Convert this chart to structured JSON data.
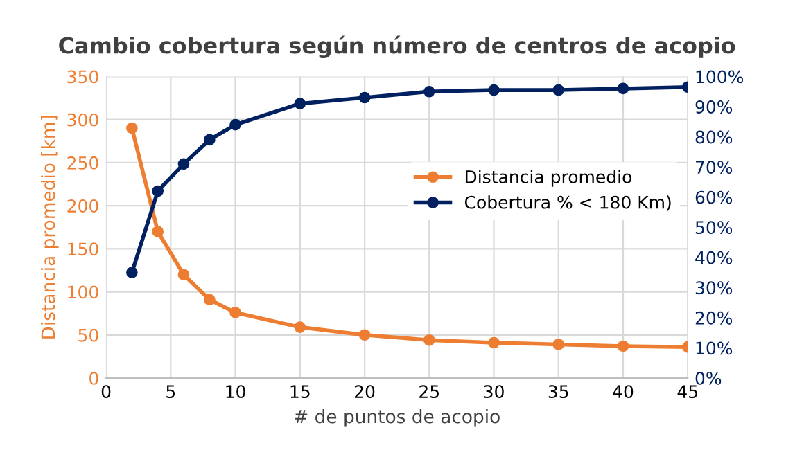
{
  "chart_data": {
    "type": "line",
    "title": "Cambio cobertura según número de centros de acopio",
    "xlabel": "# de puntos de acopio",
    "ylabel": "Distancia promedio [km]",
    "x": [
      2,
      4,
      6,
      8,
      10,
      15,
      20,
      25,
      30,
      35,
      40,
      45
    ],
    "series": [
      {
        "name": "Distancia promedio",
        "color": "#ed7d31",
        "values": [
          290,
          170,
          120,
          91,
          76,
          59,
          50,
          44,
          41,
          39,
          37,
          36
        ]
      },
      {
        "name": "Cobertura % < 180 Km)",
        "color": "#002060",
        "axis": "y2",
        "values": [
          35,
          62,
          71,
          79,
          84,
          91,
          93,
          95,
          95.5,
          95.5,
          96,
          96.5
        ]
      }
    ],
    "xlim": [
      0,
      45
    ],
    "xticks": [
      0,
      5,
      10,
      15,
      20,
      25,
      30,
      35,
      40,
      45
    ],
    "ylim": [
      0,
      350
    ],
    "yticks": [
      0,
      50,
      100,
      150,
      200,
      250,
      300,
      350
    ],
    "y2lim": [
      0,
      100
    ],
    "y2ticks": [
      {
        "value": 0,
        "label": "0%"
      },
      {
        "value": 10,
        "label": "10%"
      },
      {
        "value": 20,
        "label": "20%"
      },
      {
        "value": 30,
        "label": "30%"
      },
      {
        "value": 40,
        "label": "40%"
      },
      {
        "value": 50,
        "label": "50%"
      },
      {
        "value": 60,
        "label": "60%"
      },
      {
        "value": 70,
        "label": "70%"
      },
      {
        "value": 80,
        "label": "80%"
      },
      {
        "value": 90,
        "label": "90%"
      },
      {
        "value": 100,
        "label": "100%"
      }
    ],
    "grid": true,
    "legend": "right",
    "marker": "circle",
    "line_style": "solid"
  }
}
